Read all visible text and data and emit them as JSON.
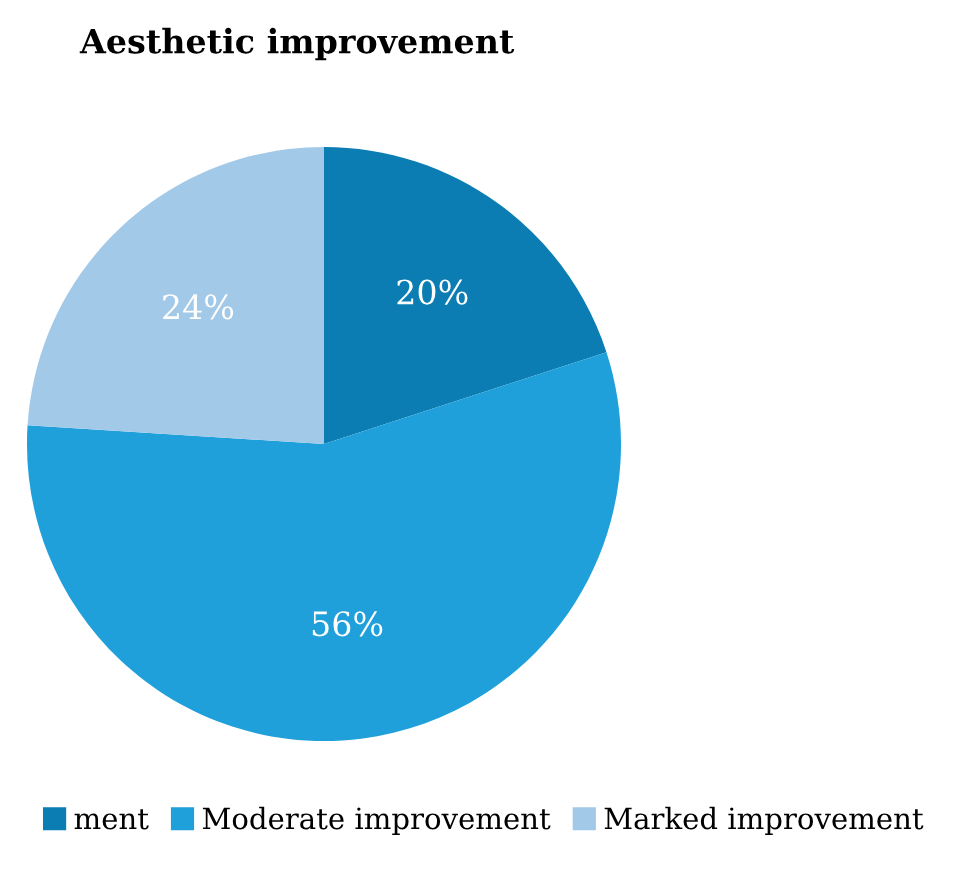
{
  "chart_data": {
    "type": "pie",
    "title": "Aesthetic improvement",
    "categories": [
      "ment",
      "Moderate improvement",
      "Marked improvement"
    ],
    "values": [
      20,
      56,
      24
    ],
    "colors": [
      "#0b7db3",
      "#20a0da",
      "#a3c9e8"
    ],
    "value_labels": [
      "20%",
      "56%",
      "24%"
    ],
    "legend": "bottom"
  }
}
